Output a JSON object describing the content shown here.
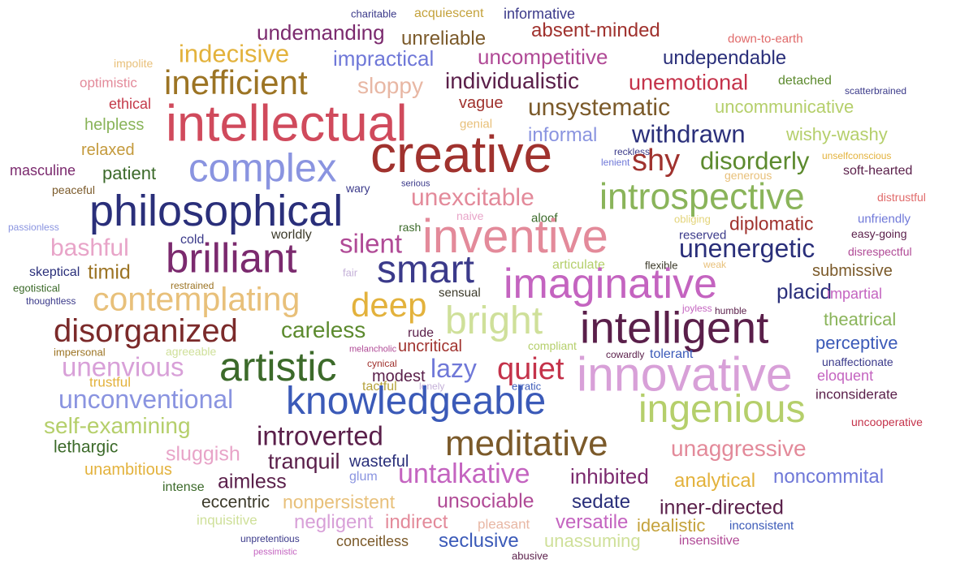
{
  "words": [
    {
      "t": "charitable",
      "c": "#3b3a8a"
    },
    {
      "t": "acquiescent",
      "c": "#c4a23c"
    },
    {
      "t": "informative",
      "c": "#3b3a8a"
    },
    {
      "t": "undemanding",
      "c": "#7b2a6e"
    },
    {
      "t": "unreliable",
      "c": "#7b5a2a"
    },
    {
      "t": "absent-minded",
      "c": "#a0322e"
    },
    {
      "t": "down-to-earth",
      "c": "#e06a6a"
    },
    {
      "t": "indecisive",
      "c": "#e3b23c"
    },
    {
      "t": "impractical",
      "c": "#6f78d8"
    },
    {
      "t": "uncompetitive",
      "c": "#b04a96"
    },
    {
      "t": "undependable",
      "c": "#2a2f7a"
    },
    {
      "t": "impolite",
      "c": "#e8c07a"
    },
    {
      "t": "optimistic",
      "c": "#e38a9a"
    },
    {
      "t": "inefficient",
      "c": "#9c7424"
    },
    {
      "t": "sloppy",
      "c": "#e8b7a4"
    },
    {
      "t": "individualistic",
      "c": "#5a1f4a"
    },
    {
      "t": "unemotional",
      "c": "#c4324a"
    },
    {
      "t": "detached",
      "c": "#5c8a2e"
    },
    {
      "t": "scatterbrained",
      "c": "#3b3a8a"
    },
    {
      "t": "ethical",
      "c": "#c43a4a"
    },
    {
      "t": "intellectual",
      "c": "#d04a5c"
    },
    {
      "t": "vague",
      "c": "#a0322e"
    },
    {
      "t": "unsystematic",
      "c": "#7b5a2a"
    },
    {
      "t": "uncommunicative",
      "c": "#b5cf6b"
    },
    {
      "t": "helpless",
      "c": "#8ab45a"
    },
    {
      "t": "genial",
      "c": "#e8c07a"
    },
    {
      "t": "informal",
      "c": "#8a94e0"
    },
    {
      "t": "withdrawn",
      "c": "#2a2f7a"
    },
    {
      "t": "wishy-washy",
      "c": "#b5cf6b"
    },
    {
      "t": "relaxed",
      "c": "#c49a3c"
    },
    {
      "t": "creative",
      "c": "#a0322e"
    },
    {
      "t": "reckless",
      "c": "#3b3a8a"
    },
    {
      "t": "lenient",
      "c": "#6f78d8"
    },
    {
      "t": "unselfconscious",
      "c": "#e3b23c"
    },
    {
      "t": "masculine",
      "c": "#7b2a6e"
    },
    {
      "t": "patient",
      "c": "#3c6a2a"
    },
    {
      "t": "complex",
      "c": "#8a94e0"
    },
    {
      "t": "shy",
      "c": "#a0322e"
    },
    {
      "t": "disorderly",
      "c": "#5c8a2e"
    },
    {
      "t": "generous",
      "c": "#e8c07a"
    },
    {
      "t": "soft-hearted",
      "c": "#5a1f4a"
    },
    {
      "t": "peaceful",
      "c": "#7b5a2a"
    },
    {
      "t": "wary",
      "c": "#3b3a8a"
    },
    {
      "t": "serious",
      "c": "#3b3a8a"
    },
    {
      "t": "unexcitable",
      "c": "#e38a9a"
    },
    {
      "t": "introspective",
      "c": "#8ab45a"
    },
    {
      "t": "distrustful",
      "c": "#e06a6a"
    },
    {
      "t": "philosophical",
      "c": "#2a2f7a"
    },
    {
      "t": "naive",
      "c": "#e8a4c8"
    },
    {
      "t": "aloof",
      "c": "#3c6a2a"
    },
    {
      "t": "obliging",
      "c": "#e3d47a"
    },
    {
      "t": "diplomatic",
      "c": "#a0322e"
    },
    {
      "t": "unfriendly",
      "c": "#6f78d8"
    },
    {
      "t": "passionless",
      "c": "#8a94e0"
    },
    {
      "t": "rash",
      "c": "#3c6a2a"
    },
    {
      "t": "inventive",
      "c": "#e38a9a"
    },
    {
      "t": "reserved",
      "c": "#3b3a8a"
    },
    {
      "t": "easy-going",
      "c": "#5a1f4a"
    },
    {
      "t": "bashful",
      "c": "#e8a4c8"
    },
    {
      "t": "cold",
      "c": "#3b3a8a"
    },
    {
      "t": "worldly",
      "c": "#3c3a2a"
    },
    {
      "t": "silent",
      "c": "#b04a96"
    },
    {
      "t": "unenergetic",
      "c": "#2a2f7a"
    },
    {
      "t": "disrespectful",
      "c": "#b04a96"
    },
    {
      "t": "brilliant",
      "c": "#7b2a6e"
    },
    {
      "t": "skeptical",
      "c": "#2a2f7a"
    },
    {
      "t": "fair",
      "c": "#c4b0d8"
    },
    {
      "t": "smart",
      "c": "#3b3a8a"
    },
    {
      "t": "articulate",
      "c": "#b5cf6b"
    },
    {
      "t": "flexible",
      "c": "#3c3a2a"
    },
    {
      "t": "weak",
      "c": "#e8c07a"
    },
    {
      "t": "submissive",
      "c": "#7b5a2a"
    },
    {
      "t": "timid",
      "c": "#9c7424"
    },
    {
      "t": "egotistical",
      "c": "#3c6a2a"
    },
    {
      "t": "restrained",
      "c": "#9c7424"
    },
    {
      "t": "imaginative",
      "c": "#c464c0"
    },
    {
      "t": "placid",
      "c": "#2a2f7a"
    },
    {
      "t": "thoughtless",
      "c": "#3b3a8a"
    },
    {
      "t": "contemplating",
      "c": "#e8c07a"
    },
    {
      "t": "sensual",
      "c": "#3c3a2a"
    },
    {
      "t": "impartial",
      "c": "#c464c0"
    },
    {
      "t": "deep",
      "c": "#e3b23c"
    },
    {
      "t": "joyless",
      "c": "#c464c0"
    },
    {
      "t": "humble",
      "c": "#5a1f4a"
    },
    {
      "t": "bright",
      "c": "#cfe09a"
    },
    {
      "t": "theatrical",
      "c": "#8ab45a"
    },
    {
      "t": "disorganized",
      "c": "#7b2a2a"
    },
    {
      "t": "careless",
      "c": "#5c8a2e"
    },
    {
      "t": "intelligent",
      "c": "#5a1f4a"
    },
    {
      "t": "rude",
      "c": "#5a1f4a"
    },
    {
      "t": "perceptive",
      "c": "#3b5ab8"
    },
    {
      "t": "impersonal",
      "c": "#9c7424"
    },
    {
      "t": "agreeable",
      "c": "#cfe09a"
    },
    {
      "t": "melancholic",
      "c": "#b04a96"
    },
    {
      "t": "uncritical",
      "c": "#a0322e"
    },
    {
      "t": "compliant",
      "c": "#b5cf6b"
    },
    {
      "t": "cowardly",
      "c": "#5a1f4a"
    },
    {
      "t": "tolerant",
      "c": "#3b5ab8"
    },
    {
      "t": "artistic",
      "c": "#3c6a2a"
    },
    {
      "t": "unaffectionate",
      "c": "#3b3a8a"
    },
    {
      "t": "unenvious",
      "c": "#d8a0d8"
    },
    {
      "t": "cynical",
      "c": "#a0322e"
    },
    {
      "t": "lazy",
      "c": "#6f78d8"
    },
    {
      "t": "quiet",
      "c": "#c4324a"
    },
    {
      "t": "modest",
      "c": "#5a1f4a"
    },
    {
      "t": "innovative",
      "c": "#d8a0d8"
    },
    {
      "t": "eloquent",
      "c": "#c464c0"
    },
    {
      "t": "trustful",
      "c": "#e3b23c"
    },
    {
      "t": "tactful",
      "c": "#b5a23c"
    },
    {
      "t": "lonely",
      "c": "#c4b0d8"
    },
    {
      "t": "erratic",
      "c": "#3b5ab8"
    },
    {
      "t": "inconsiderate",
      "c": "#5a1f4a"
    },
    {
      "t": "unconventional",
      "c": "#8a94e0"
    },
    {
      "t": "knowledgeable",
      "c": "#3b5ab8"
    },
    {
      "t": "ingenious",
      "c": "#b5cf6b"
    },
    {
      "t": "self-examining",
      "c": "#b5cf6b"
    },
    {
      "t": "uncooperative",
      "c": "#c4324a"
    },
    {
      "t": "introverted",
      "c": "#5a1f4a"
    },
    {
      "t": "lethargic",
      "c": "#3c6a2a"
    },
    {
      "t": "meditative",
      "c": "#7b5a2a"
    },
    {
      "t": "unaggressive",
      "c": "#e38a9a"
    },
    {
      "t": "sluggish",
      "c": "#e8a4c8"
    },
    {
      "t": "tranquil",
      "c": "#5a1f4a"
    },
    {
      "t": "wasteful",
      "c": "#2a2f7a"
    },
    {
      "t": "unambitious",
      "c": "#e3b23c"
    },
    {
      "t": "untalkative",
      "c": "#c464c0"
    },
    {
      "t": "inhibited",
      "c": "#7b2a6e"
    },
    {
      "t": "analytical",
      "c": "#e3b23c"
    },
    {
      "t": "noncommital",
      "c": "#6f78d8"
    },
    {
      "t": "aimless",
      "c": "#5a1f4a"
    },
    {
      "t": "glum",
      "c": "#8a94e0"
    },
    {
      "t": "intense",
      "c": "#3c6a2a"
    },
    {
      "t": "eccentric",
      "c": "#3c3a2a"
    },
    {
      "t": "nonpersistent",
      "c": "#e8c07a"
    },
    {
      "t": "unsociable",
      "c": "#b04a96"
    },
    {
      "t": "sedate",
      "c": "#2a2f7a"
    },
    {
      "t": "inner-directed",
      "c": "#5a1f4a"
    },
    {
      "t": "inquisitive",
      "c": "#cfe09a"
    },
    {
      "t": "negligent",
      "c": "#d8a0d8"
    },
    {
      "t": "indirect",
      "c": "#e38a9a"
    },
    {
      "t": "pleasant",
      "c": "#e8b7a4"
    },
    {
      "t": "versatile",
      "c": "#c464c0"
    },
    {
      "t": "idealistic",
      "c": "#c4a23c"
    },
    {
      "t": "inconsistent",
      "c": "#3b5ab8"
    },
    {
      "t": "unpretentious",
      "c": "#3b3a8a"
    },
    {
      "t": "conceitless",
      "c": "#7b5a2a"
    },
    {
      "t": "seclusive",
      "c": "#3b5ab8"
    },
    {
      "t": "unassuming",
      "c": "#cfe09a"
    },
    {
      "t": "insensitive",
      "c": "#b04a96"
    },
    {
      "t": "pessimistic",
      "c": "#c464c0"
    },
    {
      "t": "abusive",
      "c": "#5a1f4a"
    }
  ]
}
